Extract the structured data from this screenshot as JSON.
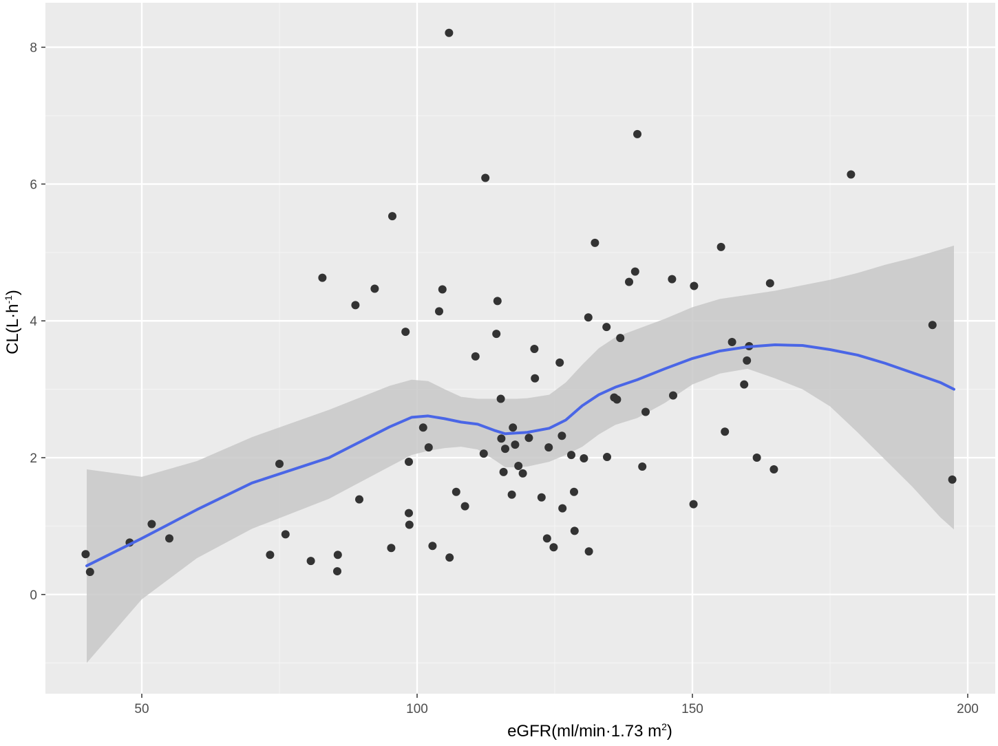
{
  "chart_data": {
    "type": "scatter",
    "title": "",
    "xlabel": "eGFR(ml/min·1.73 m",
    "xlabel_sup": "2",
    "xlabel_suffix": ")",
    "ylabel": "CL(L·h",
    "ylabel_sup": "-1",
    "ylabel_suffix": ")",
    "xlim": [
      32.5,
      205
    ],
    "ylim": [
      -1.45,
      8.65
    ],
    "x_ticks": [
      50,
      100,
      150,
      200
    ],
    "y_ticks": [
      0,
      2,
      4,
      6,
      8
    ],
    "grid": true,
    "colors": {
      "panel": "#ebebeb",
      "grid_major": "#ffffff",
      "grid_minor": "#f4f4f4",
      "points": "#333333",
      "smooth_line": "#4a66e6",
      "ribbon": "#c8c8c8"
    },
    "points": [
      [
        39.8,
        0.59
      ],
      [
        40.6,
        0.33
      ],
      [
        47.8,
        0.76
      ],
      [
        51.8,
        1.03
      ],
      [
        55.0,
        0.82
      ],
      [
        73.3,
        0.58
      ],
      [
        75.0,
        1.91
      ],
      [
        76.1,
        0.88
      ],
      [
        80.7,
        0.49
      ],
      [
        82.8,
        4.63
      ],
      [
        85.5,
        0.34
      ],
      [
        85.6,
        0.58
      ],
      [
        88.8,
        4.23
      ],
      [
        89.5,
        1.39
      ],
      [
        92.3,
        4.47
      ],
      [
        95.3,
        0.68
      ],
      [
        95.5,
        5.53
      ],
      [
        97.9,
        3.84
      ],
      [
        98.5,
        1.94
      ],
      [
        98.5,
        1.19
      ],
      [
        98.6,
        1.02
      ],
      [
        101.1,
        2.44
      ],
      [
        102.1,
        2.15
      ],
      [
        102.8,
        0.71
      ],
      [
        104.0,
        4.14
      ],
      [
        104.6,
        4.46
      ],
      [
        105.8,
        8.21
      ],
      [
        105.9,
        0.54
      ],
      [
        107.1,
        1.5
      ],
      [
        108.7,
        1.29
      ],
      [
        110.6,
        3.48
      ],
      [
        112.1,
        2.06
      ],
      [
        112.4,
        6.09
      ],
      [
        114.4,
        3.81
      ],
      [
        114.6,
        4.29
      ],
      [
        115.2,
        2.86
      ],
      [
        115.3,
        2.28
      ],
      [
        115.7,
        1.79
      ],
      [
        116.0,
        2.13
      ],
      [
        117.2,
        1.46
      ],
      [
        117.4,
        2.44
      ],
      [
        117.8,
        2.19
      ],
      [
        118.4,
        1.88
      ],
      [
        119.2,
        1.77
      ],
      [
        120.3,
        2.29
      ],
      [
        121.3,
        3.59
      ],
      [
        121.4,
        3.16
      ],
      [
        122.6,
        1.42
      ],
      [
        123.6,
        0.82
      ],
      [
        123.9,
        2.15
      ],
      [
        124.8,
        0.69
      ],
      [
        125.9,
        3.39
      ],
      [
        126.3,
        2.32
      ],
      [
        126.4,
        1.26
      ],
      [
        128.0,
        2.04
      ],
      [
        128.5,
        1.5
      ],
      [
        128.6,
        0.93
      ],
      [
        130.3,
        1.99
      ],
      [
        131.1,
        4.05
      ],
      [
        131.2,
        0.63
      ],
      [
        132.3,
        5.14
      ],
      [
        134.4,
        3.91
      ],
      [
        134.5,
        2.01
      ],
      [
        135.8,
        2.88
      ],
      [
        136.3,
        2.85
      ],
      [
        136.9,
        3.75
      ],
      [
        138.5,
        4.57
      ],
      [
        139.6,
        4.72
      ],
      [
        140.0,
        6.73
      ],
      [
        140.9,
        1.87
      ],
      [
        141.5,
        2.67
      ],
      [
        146.3,
        4.61
      ],
      [
        146.5,
        2.91
      ],
      [
        150.2,
        1.32
      ],
      [
        150.3,
        4.51
      ],
      [
        155.2,
        5.08
      ],
      [
        155.9,
        2.38
      ],
      [
        157.2,
        3.69
      ],
      [
        159.4,
        3.07
      ],
      [
        159.9,
        3.42
      ],
      [
        160.3,
        3.63
      ],
      [
        161.7,
        2.0
      ],
      [
        164.1,
        4.55
      ],
      [
        164.8,
        1.83
      ],
      [
        178.8,
        6.14
      ],
      [
        193.6,
        3.94
      ],
      [
        197.2,
        1.68
      ]
    ],
    "smooth_line": [
      [
        40.0,
        0.42
      ],
      [
        50.0,
        0.82
      ],
      [
        60.0,
        1.24
      ],
      [
        70.0,
        1.63
      ],
      [
        84.0,
        2.0
      ],
      [
        95.0,
        2.45
      ],
      [
        99.0,
        2.59
      ],
      [
        102.0,
        2.61
      ],
      [
        105.0,
        2.57
      ],
      [
        108.0,
        2.52
      ],
      [
        111.0,
        2.49
      ],
      [
        114.0,
        2.4
      ],
      [
        116.0,
        2.35
      ],
      [
        118.0,
        2.36
      ],
      [
        120.0,
        2.37
      ],
      [
        124.0,
        2.43
      ],
      [
        127.0,
        2.55
      ],
      [
        130.0,
        2.76
      ],
      [
        133.0,
        2.92
      ],
      [
        136.0,
        3.03
      ],
      [
        140.0,
        3.14
      ],
      [
        145.0,
        3.3
      ],
      [
        150.0,
        3.45
      ],
      [
        155.0,
        3.56
      ],
      [
        160.0,
        3.62
      ],
      [
        165.0,
        3.65
      ],
      [
        170.0,
        3.64
      ],
      [
        175.0,
        3.58
      ],
      [
        180.0,
        3.5
      ],
      [
        185.0,
        3.38
      ],
      [
        190.0,
        3.24
      ],
      [
        195.0,
        3.1
      ],
      [
        197.5,
        3.0
      ]
    ],
    "ribbon_upper": [
      [
        40.0,
        1.83
      ],
      [
        50.0,
        1.72
      ],
      [
        60.0,
        1.95
      ],
      [
        70.0,
        2.3
      ],
      [
        84.0,
        2.7
      ],
      [
        95.0,
        3.05
      ],
      [
        99.0,
        3.14
      ],
      [
        102.0,
        3.12
      ],
      [
        105.0,
        3.0
      ],
      [
        108.0,
        2.89
      ],
      [
        111.0,
        2.86
      ],
      [
        114.0,
        2.86
      ],
      [
        116.0,
        2.86
      ],
      [
        118.0,
        2.86
      ],
      [
        120.0,
        2.87
      ],
      [
        124.0,
        2.92
      ],
      [
        127.0,
        3.1
      ],
      [
        130.0,
        3.36
      ],
      [
        133.0,
        3.6
      ],
      [
        136.0,
        3.76
      ],
      [
        140.0,
        3.88
      ],
      [
        145.0,
        4.03
      ],
      [
        150.0,
        4.2
      ],
      [
        155.0,
        4.32
      ],
      [
        160.0,
        4.38
      ],
      [
        165.0,
        4.44
      ],
      [
        170.0,
        4.52
      ],
      [
        175.0,
        4.6
      ],
      [
        180.0,
        4.7
      ],
      [
        185.0,
        4.82
      ],
      [
        190.0,
        4.92
      ],
      [
        195.0,
        5.04
      ],
      [
        197.5,
        5.1
      ]
    ],
    "ribbon_lower": [
      [
        40.0,
        -1.0
      ],
      [
        50.0,
        -0.07
      ],
      [
        60.0,
        0.53
      ],
      [
        70.0,
        0.96
      ],
      [
        84.0,
        1.4
      ],
      [
        95.0,
        1.87
      ],
      [
        99.0,
        2.04
      ],
      [
        102.0,
        2.1
      ],
      [
        105.0,
        2.14
      ],
      [
        108.0,
        2.16
      ],
      [
        111.0,
        2.12
      ],
      [
        114.0,
        1.97
      ],
      [
        116.0,
        1.86
      ],
      [
        118.0,
        1.86
      ],
      [
        120.0,
        1.87
      ],
      [
        124.0,
        1.94
      ],
      [
        127.0,
        2.04
      ],
      [
        130.0,
        2.16
      ],
      [
        133.0,
        2.34
      ],
      [
        136.0,
        2.48
      ],
      [
        140.0,
        2.58
      ],
      [
        145.0,
        2.8
      ],
      [
        150.0,
        3.07
      ],
      [
        155.0,
        3.23
      ],
      [
        160.0,
        3.3
      ],
      [
        165.0,
        3.16
      ],
      [
        170.0,
        3.0
      ],
      [
        175.0,
        2.75
      ],
      [
        180.0,
        2.37
      ],
      [
        185.0,
        1.97
      ],
      [
        190.0,
        1.57
      ],
      [
        195.0,
        1.13
      ],
      [
        197.5,
        0.95
      ]
    ]
  }
}
